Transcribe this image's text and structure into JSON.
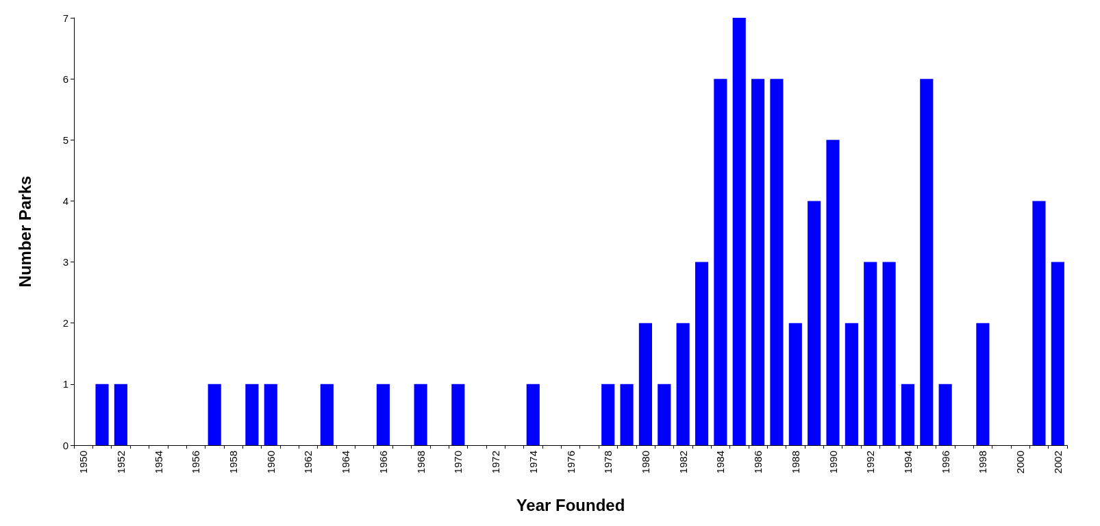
{
  "chart_data": {
    "type": "bar",
    "xlabel": "Year Founded",
    "ylabel": "Number Parks",
    "categories": [
      "1950",
      null,
      "1952",
      null,
      "1954",
      null,
      "1956",
      null,
      "1958",
      null,
      "1960",
      null,
      "1962",
      null,
      "1964",
      null,
      "1966",
      null,
      "1968",
      null,
      "1970",
      null,
      "1972",
      null,
      "1974",
      null,
      "1976",
      null,
      "1978",
      null,
      "1980",
      null,
      "1982",
      null,
      "1984",
      null,
      "1986",
      null,
      "1988",
      null,
      "1990",
      null,
      "1992",
      null,
      "1994",
      null,
      "1996",
      null,
      "1998",
      null,
      "2000",
      null,
      "2002"
    ],
    "values": [
      0,
      1,
      1,
      0,
      0,
      0,
      0,
      1,
      0,
      1,
      1,
      0,
      0,
      1,
      0,
      0,
      1,
      0,
      1,
      0,
      1,
      0,
      0,
      0,
      1,
      0,
      0,
      0,
      1,
      1,
      2,
      1,
      2,
      3,
      6,
      7,
      6,
      6,
      2,
      4,
      5,
      2,
      3,
      3,
      1,
      6,
      1,
      0,
      2,
      0,
      0,
      4,
      3
    ],
    "color": "#0000ff",
    "ylim": [
      0,
      7
    ],
    "yticks": [
      0,
      1,
      2,
      3,
      4,
      5,
      6,
      7
    ]
  }
}
